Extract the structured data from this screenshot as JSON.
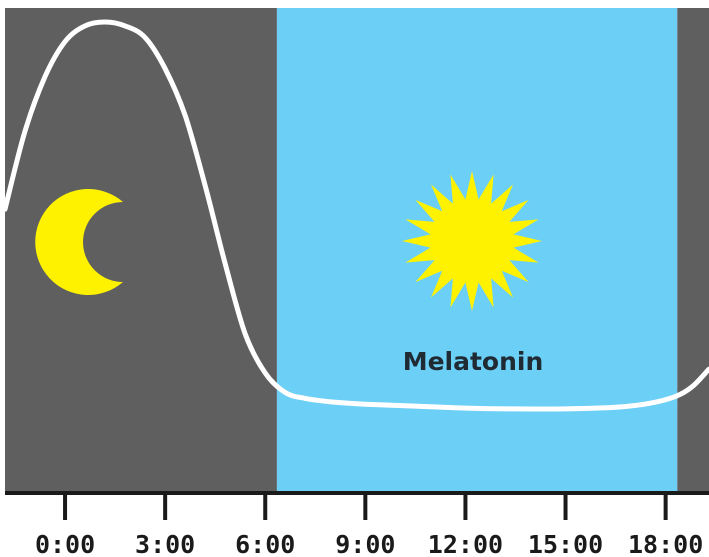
{
  "chart_data": {
    "type": "line",
    "title": "",
    "xlabel": "",
    "ylabel": "",
    "x_ticks": [
      "0:00",
      "3:00",
      "6:00",
      "9:00",
      "12:00",
      "15:00",
      "18:00"
    ],
    "x_tick_hours": [
      0,
      3,
      6,
      9,
      12,
      15,
      18
    ],
    "x_range_hours": [
      -1.8,
      19.3
    ],
    "night_color": "#5f5f60",
    "day_color": "#6ccff6",
    "night_icon": "moon-icon",
    "day_icon": "sun-icon",
    "icon_color": "#fff200",
    "series": [
      {
        "name": "Melatonin",
        "color": "#ffffff",
        "hours": [
          -1.8,
          -1.2,
          -0.6,
          0.0,
          0.6,
          1.2,
          1.8,
          2.4,
          3.0,
          3.6,
          4.2,
          4.8,
          5.4,
          6.0,
          6.6,
          7.2,
          8.1,
          9.0,
          10.5,
          12.0,
          13.5,
          15.0,
          16.5,
          17.5,
          18.3,
          18.8,
          19.3
        ],
        "values": [
          0.52,
          0.72,
          0.86,
          0.95,
          0.99,
          1.0,
          0.99,
          0.96,
          0.88,
          0.76,
          0.58,
          0.38,
          0.2,
          0.1,
          0.05,
          0.035,
          0.025,
          0.02,
          0.015,
          0.01,
          0.008,
          0.008,
          0.012,
          0.022,
          0.04,
          0.065,
          0.11
        ]
      }
    ],
    "bands": [
      {
        "name": "night",
        "from_hour": -1.8,
        "to_hour": 6.35
      },
      {
        "name": "day",
        "from_hour": 6.35,
        "to_hour": 18.35
      },
      {
        "name": "night",
        "from_hour": 18.35,
        "to_hour": 19.3
      }
    ]
  }
}
